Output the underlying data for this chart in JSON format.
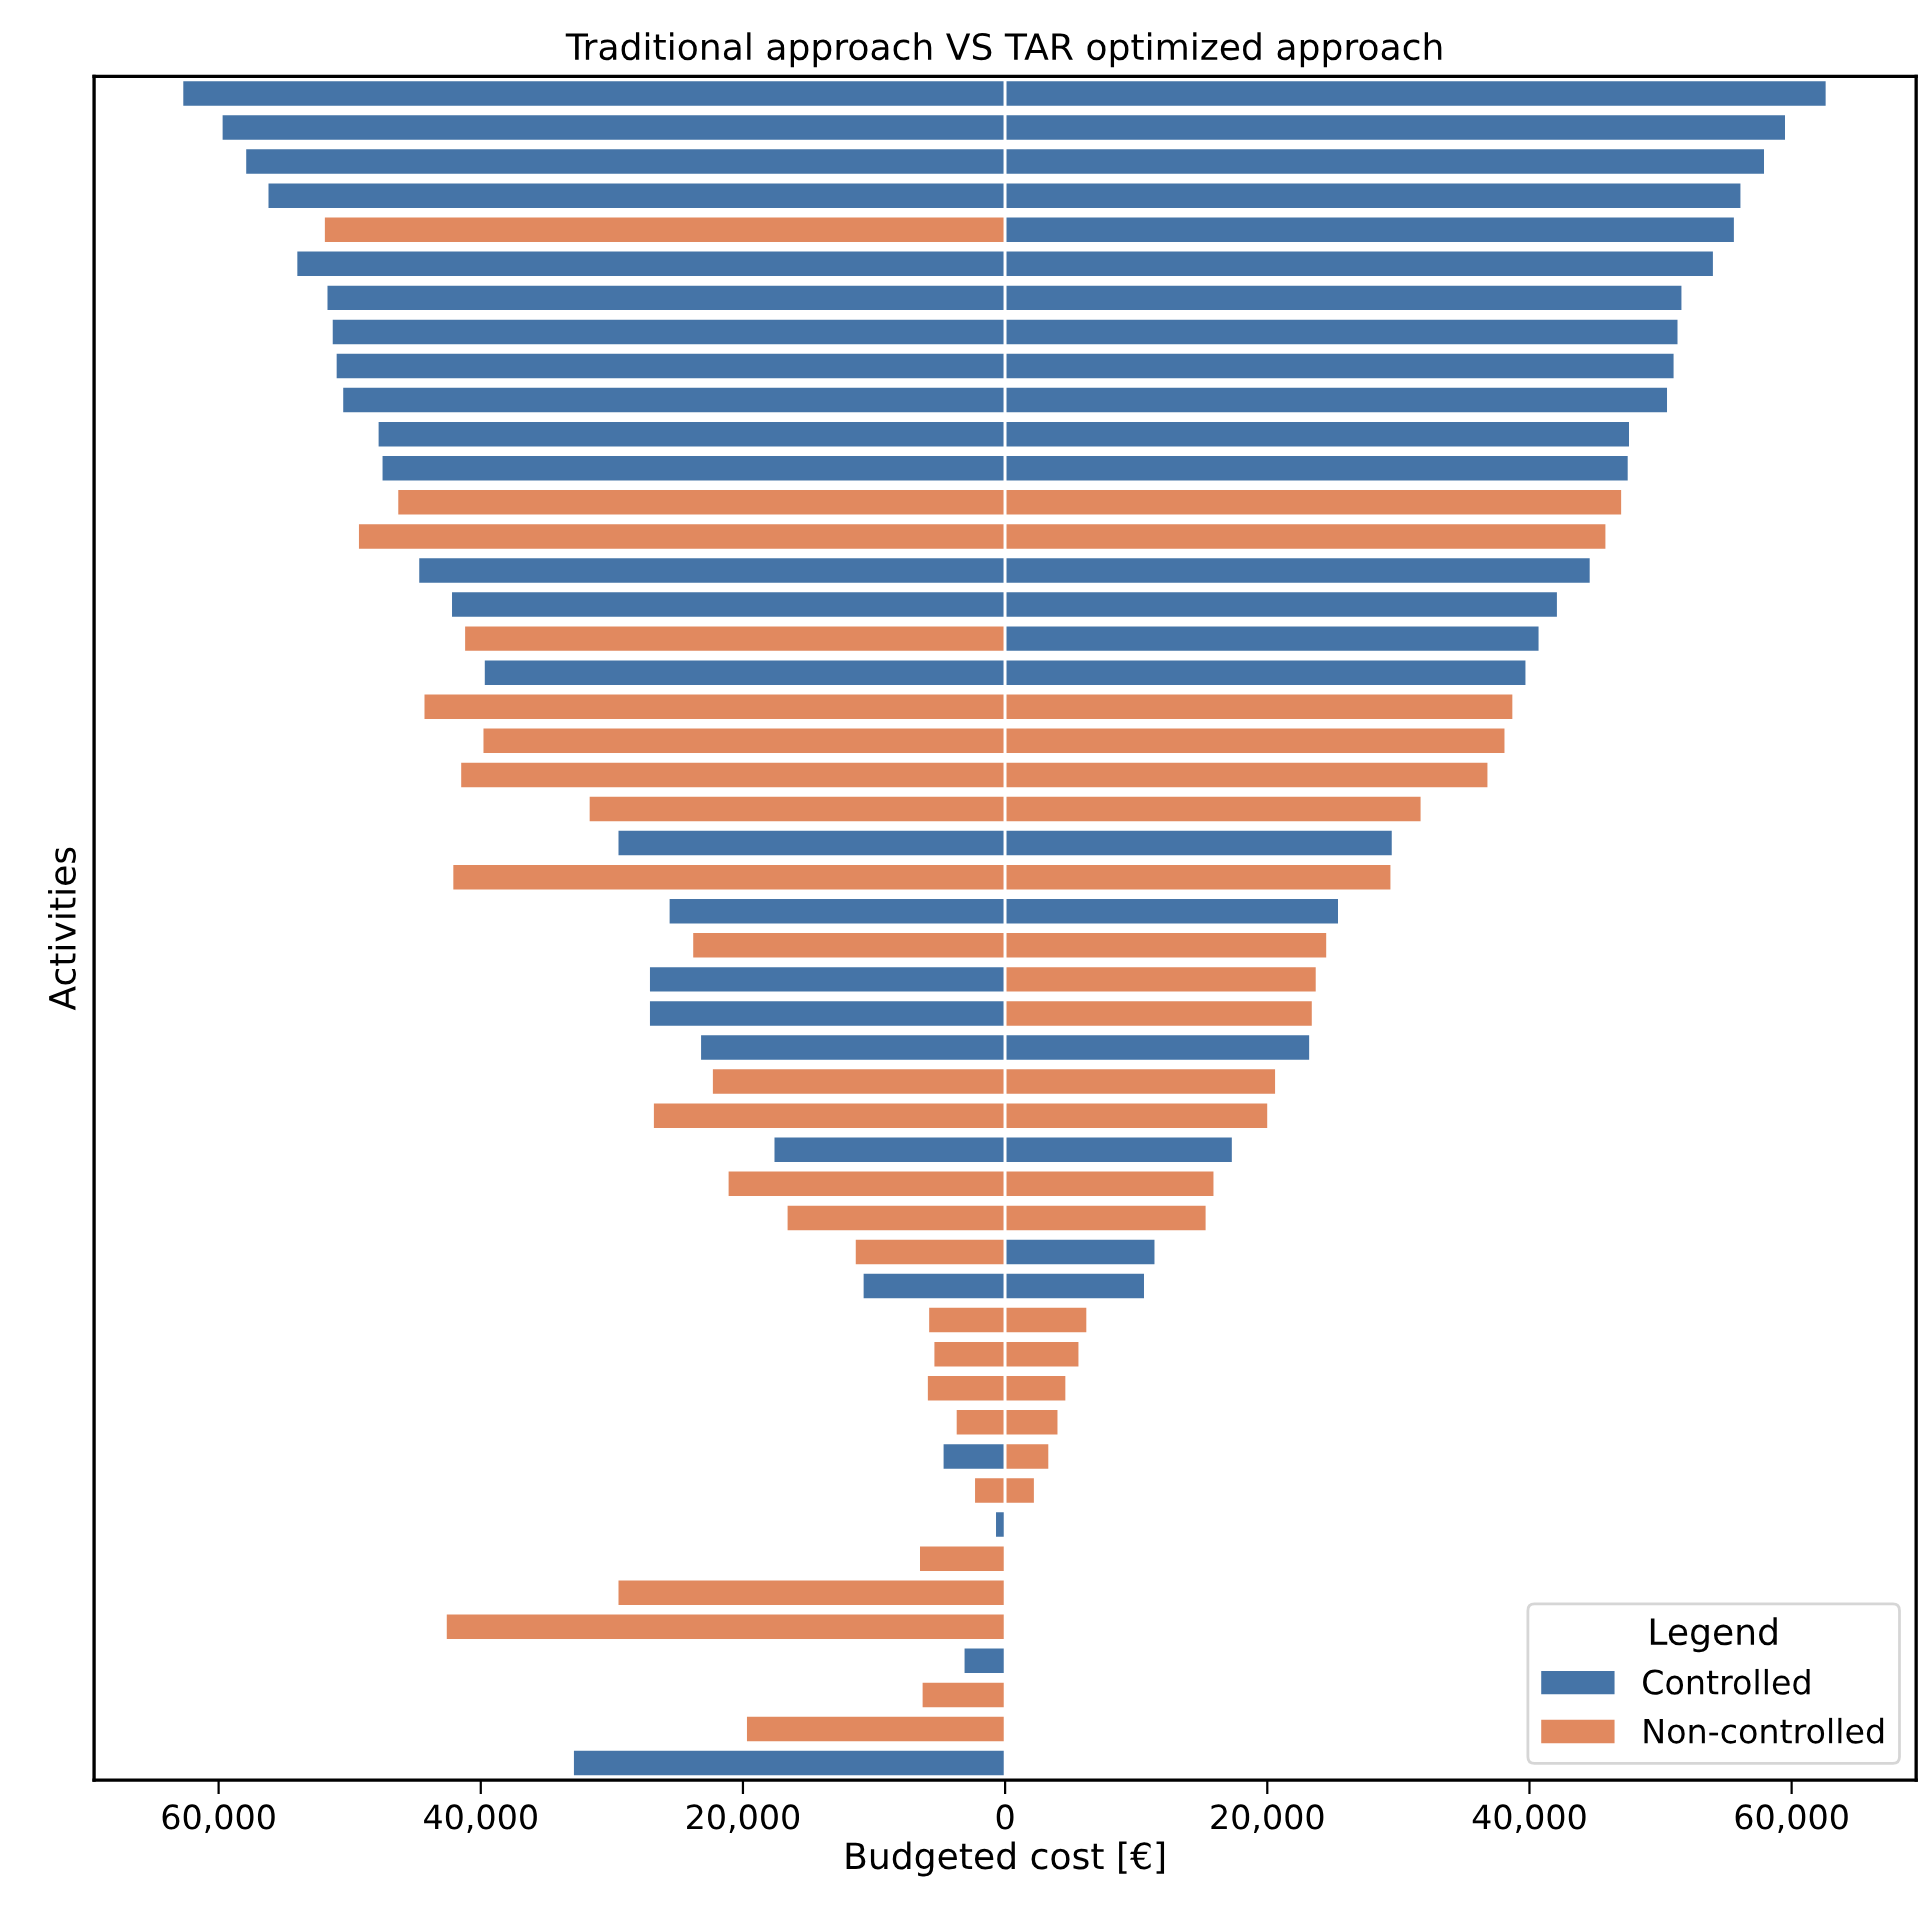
{
  "chart_data": {
    "type": "bar",
    "orientation": "horizontal",
    "stacked": true,
    "title": "Traditional approach VS TAR optimized approach",
    "xlabel": "Budgeted cost [€]",
    "ylabel": "Activities",
    "categories": [
      null,
      null,
      null,
      null,
      null,
      null,
      null,
      null,
      null,
      null,
      null,
      null,
      null,
      null,
      null,
      null,
      null,
      null,
      null,
      null,
      null,
      null,
      null,
      null,
      null,
      null,
      null,
      null,
      null,
      null,
      null,
      null,
      null,
      null,
      null,
      null,
      null,
      null,
      null,
      null,
      null,
      null,
      null,
      null,
      null,
      null,
      null,
      null,
      null,
      null
    ],
    "series": [
      {
        "name": "Controlled",
        "color": "#4574a7",
        "values": [
          -62800,
          -59800,
          -58000,
          -56300,
          null,
          -54100,
          -51800,
          -51400,
          -51100,
          -50600,
          -47900,
          -47600,
          null,
          null,
          -44800,
          -42300,
          null,
          -39800,
          null,
          null,
          null,
          null,
          -29600,
          null,
          -25700,
          null,
          -27200,
          -27200,
          -23300,
          null,
          null,
          -17700,
          null,
          null,
          null,
          -10900,
          null,
          null,
          null,
          null,
          -4800,
          null,
          -800,
          null,
          null,
          null,
          -3200,
          null,
          null,
          -33000
        ]
      },
      {
        "name": "Non-controlled",
        "color": "#e1895f",
        "values": [
          null,
          null,
          null,
          null,
          -52000,
          null,
          null,
          null,
          null,
          null,
          null,
          null,
          -46400,
          -49400,
          null,
          null,
          -41300,
          null,
          -44400,
          -39900,
          -41600,
          -31800,
          null,
          -42200,
          null,
          -23900,
          null,
          null,
          null,
          -22400,
          -26900,
          null,
          -21200,
          -16700,
          -11500,
          null,
          -5900,
          -5500,
          -6000,
          -3800,
          null,
          -2400,
          null,
          -6600,
          -29600,
          -42700,
          null,
          -6400,
          -19800,
          null
        ]
      },
      {
        "color": "#4574a7",
        "values": [
          62700,
          59600,
          58000,
          56200,
          55700,
          54100,
          51700,
          51400,
          51100,
          50600,
          47700,
          47600,
          null,
          null,
          44700,
          42200,
          40800,
          39800,
          null,
          null,
          null,
          null,
          29600,
          null,
          25500,
          null,
          null,
          null,
          23300,
          null,
          null,
          17400,
          null,
          null,
          11500,
          10700,
          null,
          null,
          null,
          null,
          null,
          null,
          null,
          null,
          null,
          null,
          null,
          null,
          null,
          null
        ]
      },
      {
        "color": "#e1895f",
        "values": [
          null,
          null,
          null,
          null,
          null,
          null,
          null,
          null,
          null,
          null,
          null,
          null,
          47100,
          45900,
          null,
          null,
          null,
          null,
          38800,
          38200,
          36900,
          31800,
          null,
          29500,
          null,
          24600,
          23800,
          23500,
          null,
          20700,
          20100,
          null,
          16000,
          15400,
          null,
          null,
          6300,
          5700,
          4700,
          4100,
          3400,
          2300,
          null,
          null,
          null,
          null,
          null,
          null,
          null,
          null
        ]
      }
    ],
    "xlim": [
      -69500,
      69500
    ],
    "xticks": [
      {
        "value": -60000,
        "label": "60,000"
      },
      {
        "value": -40000,
        "label": "40,000"
      },
      {
        "value": -20000,
        "label": "20,000"
      },
      0,
      {
        "value": 20000,
        "label": "20,000"
      },
      {
        "value": 40000,
        "label": "40,000"
      },
      {
        "value": 60000,
        "label": "60,000"
      }
    ],
    "tick_labels": "x",
    "grid": false,
    "legend": "bottom right",
    "legend_title": "Legend"
  }
}
